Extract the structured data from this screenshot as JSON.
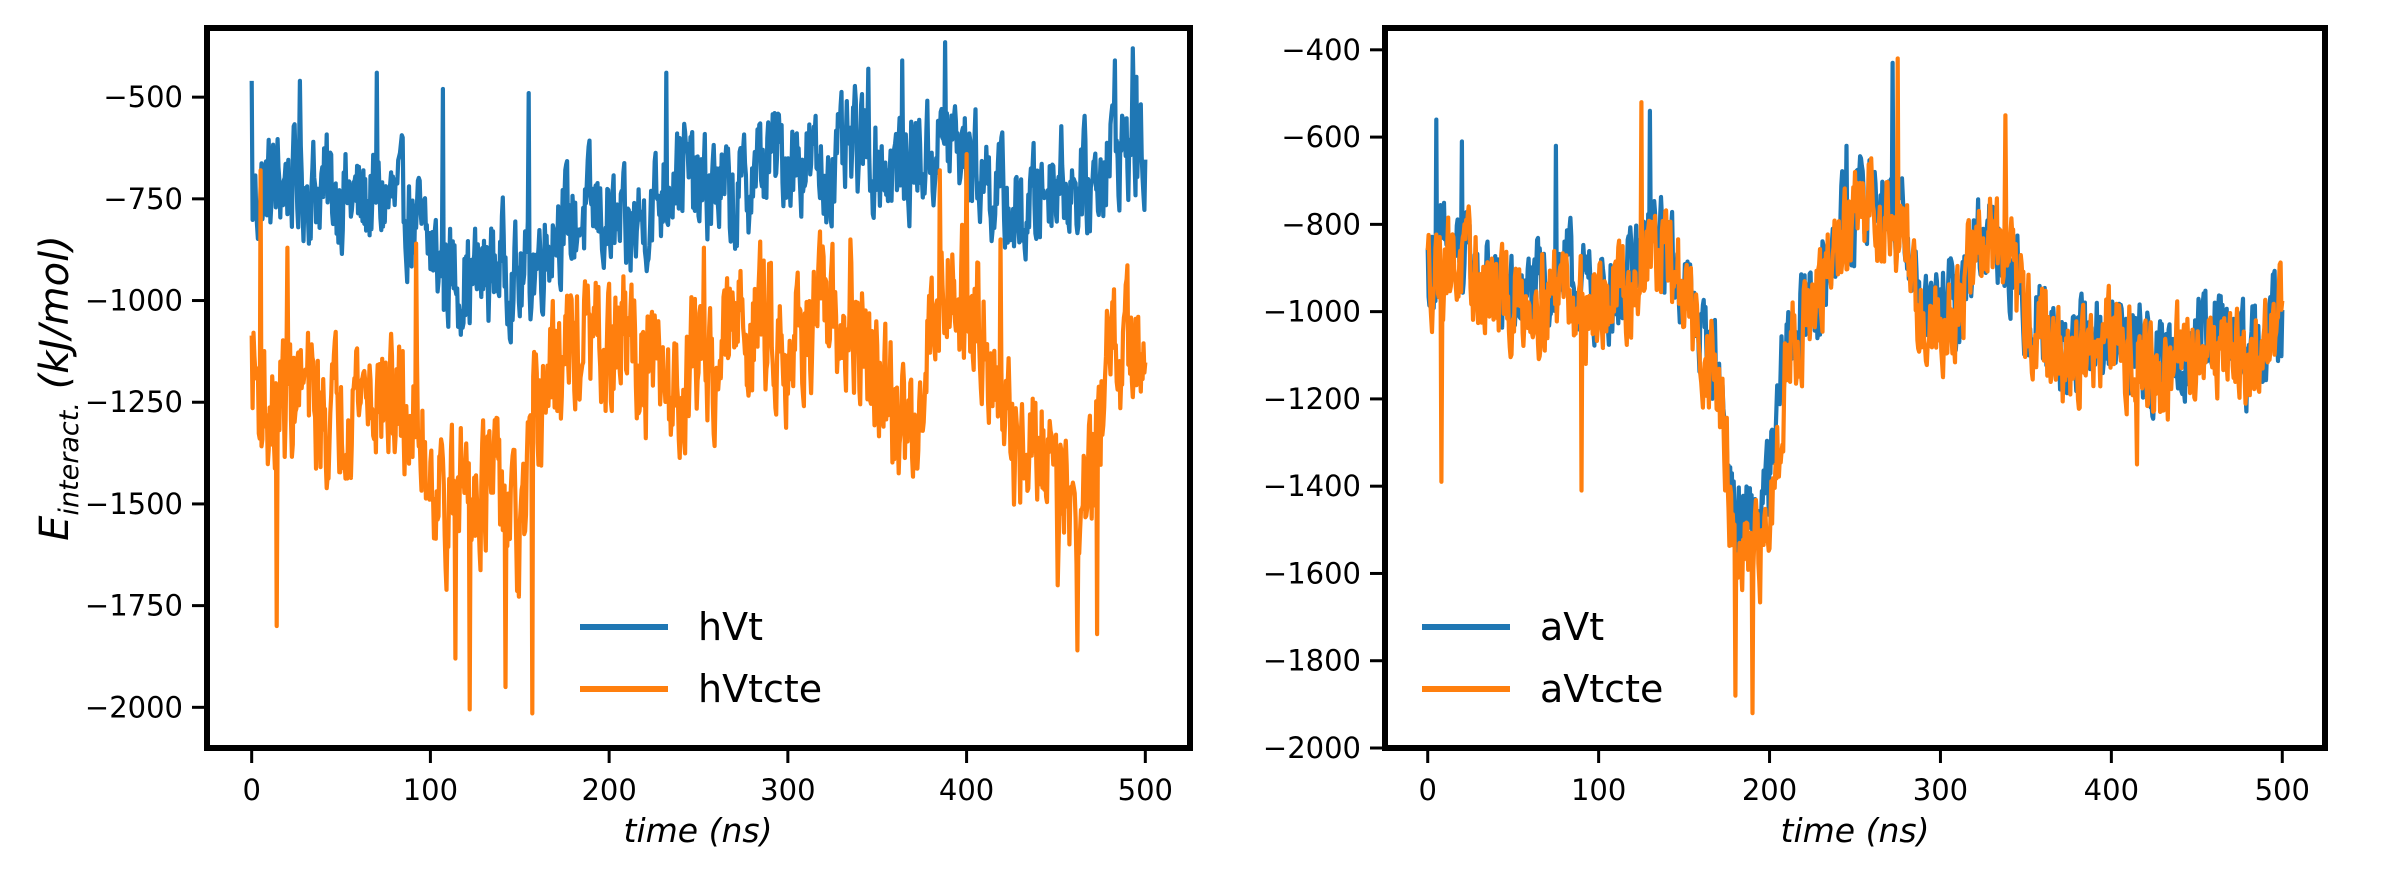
{
  "chart_data": [
    {
      "type": "line",
      "xlabel": "time (ns)",
      "ylabel_main": "E",
      "ylabel_sub": "interact.",
      "ylabel_unit": " (kJ/mol)",
      "xlim": [
        -25,
        525
      ],
      "ylim": [
        -2100,
        -330
      ],
      "xticks": [
        0,
        100,
        200,
        300,
        400,
        500
      ],
      "yticks": [
        -500,
        -750,
        -1000,
        -1250,
        -1500,
        -1750,
        -2000
      ],
      "ytick_labels": [
        "−500",
        "−750",
        "−1000",
        "−1250",
        "−1500",
        "−1750",
        "−2000"
      ],
      "legend_position": "lower-center",
      "series": [
        {
          "name": "hVt",
          "color": "#1f77b4",
          "x": [
            0,
            10,
            20,
            30,
            40,
            50,
            60,
            70,
            80,
            90,
            100,
            110,
            120,
            130,
            140,
            150,
            160,
            170,
            180,
            190,
            200,
            210,
            220,
            230,
            240,
            250,
            260,
            270,
            280,
            290,
            300,
            310,
            320,
            330,
            340,
            350,
            360,
            370,
            380,
            390,
            400,
            410,
            420,
            430,
            440,
            450,
            460,
            470,
            480,
            490,
            500
          ],
          "y": [
            -760,
            -720,
            -700,
            -720,
            -720,
            -740,
            -760,
            -750,
            -760,
            -800,
            -880,
            -930,
            -950,
            -940,
            -900,
            -960,
            -900,
            -810,
            -810,
            -780,
            -810,
            -850,
            -790,
            -730,
            -650,
            -750,
            -710,
            -770,
            -690,
            -650,
            -640,
            -650,
            -690,
            -660,
            -620,
            -660,
            -680,
            -650,
            -640,
            -610,
            -640,
            -690,
            -750,
            -810,
            -740,
            -680,
            -720,
            -720,
            -620,
            -620,
            -650
          ],
          "amp": 150,
          "spikes": [
            [
              0,
              -460
            ],
            [
              27,
              -460
            ],
            [
              70,
              -440
            ],
            [
              107,
              -480
            ],
            [
              155,
              -490
            ],
            [
              232,
              -440
            ],
            [
              345,
              -430
            ],
            [
              364,
              -410
            ],
            [
              388,
              -365
            ],
            [
              493,
              -380
            ],
            [
              483,
              -410
            ],
            [
              495,
              -450
            ]
          ]
        },
        {
          "name": "hVtcte",
          "color": "#ff7f0e",
          "x": [
            0,
            10,
            20,
            30,
            40,
            50,
            60,
            70,
            80,
            90,
            100,
            110,
            120,
            130,
            140,
            150,
            160,
            170,
            180,
            190,
            200,
            210,
            220,
            230,
            240,
            250,
            260,
            270,
            280,
            290,
            300,
            310,
            320,
            330,
            340,
            350,
            360,
            370,
            380,
            390,
            400,
            410,
            420,
            430,
            440,
            450,
            460,
            470,
            480,
            490,
            500
          ],
          "y": [
            -1150,
            -1300,
            -1220,
            -1220,
            -1300,
            -1260,
            -1210,
            -1230,
            -1260,
            -1290,
            -1410,
            -1510,
            -1420,
            -1460,
            -1470,
            -1610,
            -1280,
            -1160,
            -1120,
            -1100,
            -1150,
            -1080,
            -1180,
            -1200,
            -1220,
            -1110,
            -1170,
            -1060,
            -1060,
            -1050,
            -1120,
            -1060,
            -1050,
            -1080,
            -1100,
            -1200,
            -1300,
            -1320,
            -1050,
            -950,
            -990,
            -1040,
            -1320,
            -1360,
            -1380,
            -1360,
            -1560,
            -1420,
            -1160,
            -1100,
            -1200
          ],
          "amp": 190,
          "spikes": [
            [
              5,
              -680
            ],
            [
              14,
              -1800
            ],
            [
              20,
              -870
            ],
            [
              92,
              -860
            ],
            [
              114,
              -1880
            ],
            [
              122,
              -2005
            ],
            [
              142,
              -1950
            ],
            [
              157,
              -2015
            ],
            [
              253,
              -870
            ],
            [
              335,
              -850
            ],
            [
              385,
              -680
            ],
            [
              400,
              -640
            ],
            [
              419,
              -850
            ],
            [
              451,
              -1700
            ],
            [
              462,
              -1860
            ],
            [
              473,
              -1820
            ]
          ]
        }
      ]
    },
    {
      "type": "line",
      "xlabel": "time (ns)",
      "xlim": [
        -25,
        525
      ],
      "ylim": [
        -2000,
        -350
      ],
      "xticks": [
        0,
        100,
        200,
        300,
        400,
        500
      ],
      "yticks": [
        -400,
        -600,
        -800,
        -1000,
        -1200,
        -1400,
        -1600,
        -1800,
        -2000
      ],
      "ytick_labels": [
        "−400",
        "−600",
        "−800",
        "−1000",
        "−1200",
        "−1400",
        "−1600",
        "−1800",
        "−2000"
      ],
      "legend_position": "lower-left",
      "series": [
        {
          "name": "aVt",
          "color": "#1f77b4",
          "x": [
            0,
            10,
            20,
            30,
            40,
            50,
            60,
            70,
            80,
            90,
            100,
            110,
            120,
            130,
            140,
            150,
            160,
            170,
            180,
            190,
            200,
            210,
            220,
            230,
            240,
            250,
            260,
            270,
            280,
            290,
            300,
            310,
            320,
            330,
            340,
            350,
            360,
            370,
            380,
            390,
            400,
            410,
            420,
            430,
            440,
            450,
            460,
            470,
            480,
            490,
            500
          ],
          "y": [
            -900,
            -860,
            -880,
            -920,
            -950,
            -980,
            -960,
            -940,
            -900,
            -950,
            -960,
            -950,
            -920,
            -840,
            -850,
            -940,
            -1050,
            -1130,
            -1480,
            -1500,
            -1400,
            -1070,
            -1010,
            -960,
            -820,
            -780,
            -720,
            -760,
            -820,
            -1020,
            -1000,
            -980,
            -840,
            -800,
            -870,
            -1000,
            -1010,
            -1100,
            -1080,
            -1080,
            -1050,
            -1060,
            -1100,
            -1150,
            -1080,
            -1080,
            -1050,
            -1060,
            -1120,
            -1050,
            -1000
          ],
          "amp": 120,
          "spikes": [
            [
              5,
              -560
            ],
            [
              20,
              -610
            ],
            [
              75,
              -620
            ],
            [
              130,
              -540
            ],
            [
              245,
              -620
            ],
            [
              272,
              -430
            ]
          ]
        },
        {
          "name": "aVtcte",
          "color": "#ff7f0e",
          "x": [
            0,
            10,
            20,
            30,
            40,
            50,
            60,
            70,
            80,
            90,
            100,
            110,
            120,
            130,
            140,
            150,
            160,
            170,
            180,
            190,
            200,
            210,
            220,
            230,
            240,
            250,
            260,
            270,
            280,
            290,
            300,
            310,
            320,
            330,
            340,
            350,
            360,
            370,
            380,
            390,
            400,
            410,
            420,
            430,
            440,
            450,
            460,
            470,
            480,
            490,
            500
          ],
          "y": [
            -910,
            -880,
            -900,
            -940,
            -970,
            -990,
            -970,
            -960,
            -920,
            -970,
            -980,
            -970,
            -940,
            -860,
            -870,
            -960,
            -1070,
            -1170,
            -1560,
            -1600,
            -1480,
            -1100,
            -1030,
            -980,
            -840,
            -800,
            -740,
            -780,
            -840,
            -1040,
            -1020,
            -1000,
            -860,
            -820,
            -890,
            -1020,
            -1030,
            -1120,
            -1100,
            -1100,
            -1070,
            -1080,
            -1120,
            -1170,
            -1100,
            -1100,
            -1070,
            -1080,
            -1140,
            -1070,
            -1020
          ],
          "amp": 130,
          "spikes": [
            [
              8,
              -1390
            ],
            [
              90,
              -1410
            ],
            [
              125,
              -520
            ],
            [
              190,
              -1920
            ],
            [
              180,
              -1880
            ],
            [
              275,
              -420
            ],
            [
              338,
              -550
            ],
            [
              415,
              -1350
            ]
          ]
        }
      ]
    }
  ]
}
